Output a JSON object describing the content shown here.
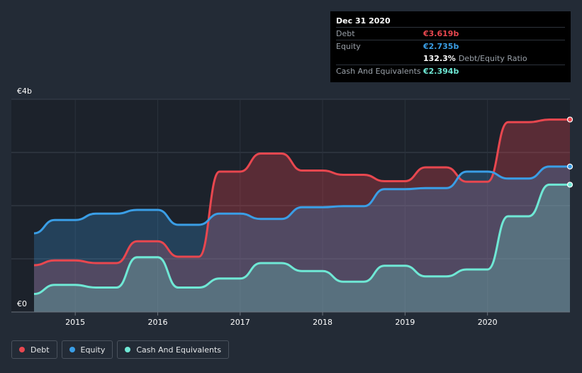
{
  "tooltip": {
    "date": "Dec 31 2020",
    "rows": [
      {
        "name": "Debt",
        "value": "€3.619b",
        "color": "#e8474f"
      },
      {
        "name": "Equity",
        "value": "€2.735b",
        "color": "#3a9ee6"
      }
    ],
    "ratio_value": "132.3%",
    "ratio_label": "Debt/Equity Ratio",
    "cash_name": "Cash And Equivalents",
    "cash_value": "€2.394b",
    "cash_color": "#6fe8d5"
  },
  "legend": [
    {
      "name": "Debt",
      "color": "#e8474f"
    },
    {
      "name": "Equity",
      "color": "#3a9ee6"
    },
    {
      "name": "Cash And Equivalents",
      "color": "#6fe8d5"
    }
  ],
  "chart_data": {
    "type": "area",
    "ylabel_top": "€4b",
    "ylabel_bottom": "€0",
    "ylim": [
      0,
      4
    ],
    "xlim": [
      2014.5,
      2021.0
    ],
    "x_ticks": [
      2015,
      2016,
      2017,
      2018,
      2019,
      2020
    ],
    "x_tick_labels": [
      "2015",
      "2016",
      "2017",
      "2018",
      "2019",
      "2020"
    ],
    "grid": true,
    "legend_position": "bottom-left",
    "series": [
      {
        "name": "Debt",
        "color": "#e8474f",
        "points": [
          [
            2014.5,
            0.88
          ],
          [
            2014.75,
            0.97
          ],
          [
            2015.0,
            0.97
          ],
          [
            2015.25,
            0.92
          ],
          [
            2015.5,
            0.92
          ],
          [
            2015.75,
            1.33
          ],
          [
            2016.0,
            1.33
          ],
          [
            2016.25,
            1.04
          ],
          [
            2016.5,
            1.04
          ],
          [
            2016.75,
            2.64
          ],
          [
            2017.0,
            2.64
          ],
          [
            2017.25,
            2.98
          ],
          [
            2017.5,
            2.98
          ],
          [
            2017.75,
            2.66
          ],
          [
            2018.0,
            2.66
          ],
          [
            2018.25,
            2.58
          ],
          [
            2018.5,
            2.58
          ],
          [
            2018.75,
            2.46
          ],
          [
            2019.0,
            2.46
          ],
          [
            2019.25,
            2.72
          ],
          [
            2019.5,
            2.72
          ],
          [
            2019.75,
            2.45
          ],
          [
            2020.0,
            2.45
          ],
          [
            2020.25,
            3.57
          ],
          [
            2020.5,
            3.57
          ],
          [
            2020.75,
            3.619
          ],
          [
            2021.0,
            3.619
          ]
        ]
      },
      {
        "name": "Equity",
        "color": "#3a9ee6",
        "points": [
          [
            2014.5,
            1.48
          ],
          [
            2014.75,
            1.73
          ],
          [
            2015.0,
            1.73
          ],
          [
            2015.25,
            1.85
          ],
          [
            2015.5,
            1.85
          ],
          [
            2015.75,
            1.92
          ],
          [
            2016.0,
            1.92
          ],
          [
            2016.25,
            1.64
          ],
          [
            2016.5,
            1.64
          ],
          [
            2016.75,
            1.85
          ],
          [
            2017.0,
            1.85
          ],
          [
            2017.25,
            1.75
          ],
          [
            2017.5,
            1.75
          ],
          [
            2017.75,
            1.97
          ],
          [
            2018.0,
            1.97
          ],
          [
            2018.25,
            1.99
          ],
          [
            2018.5,
            1.99
          ],
          [
            2018.75,
            2.31
          ],
          [
            2019.0,
            2.31
          ],
          [
            2019.25,
            2.33
          ],
          [
            2019.5,
            2.33
          ],
          [
            2019.75,
            2.64
          ],
          [
            2020.0,
            2.64
          ],
          [
            2020.25,
            2.51
          ],
          [
            2020.5,
            2.51
          ],
          [
            2020.75,
            2.735
          ],
          [
            2021.0,
            2.735
          ]
        ]
      },
      {
        "name": "Cash And Equivalents",
        "color": "#6fe8d5",
        "points": [
          [
            2014.5,
            0.34
          ],
          [
            2014.75,
            0.51
          ],
          [
            2015.0,
            0.51
          ],
          [
            2015.25,
            0.46
          ],
          [
            2015.5,
            0.46
          ],
          [
            2015.75,
            1.03
          ],
          [
            2016.0,
            1.03
          ],
          [
            2016.25,
            0.46
          ],
          [
            2016.5,
            0.46
          ],
          [
            2016.75,
            0.63
          ],
          [
            2017.0,
            0.63
          ],
          [
            2017.25,
            0.92
          ],
          [
            2017.5,
            0.92
          ],
          [
            2017.75,
            0.77
          ],
          [
            2018.0,
            0.77
          ],
          [
            2018.25,
            0.57
          ],
          [
            2018.5,
            0.57
          ],
          [
            2018.75,
            0.87
          ],
          [
            2019.0,
            0.87
          ],
          [
            2019.25,
            0.67
          ],
          [
            2019.5,
            0.67
          ],
          [
            2019.75,
            0.8
          ],
          [
            2020.0,
            0.8
          ],
          [
            2020.25,
            1.8
          ],
          [
            2020.5,
            1.8
          ],
          [
            2020.75,
            2.394
          ],
          [
            2021.0,
            2.394
          ]
        ]
      }
    ]
  }
}
